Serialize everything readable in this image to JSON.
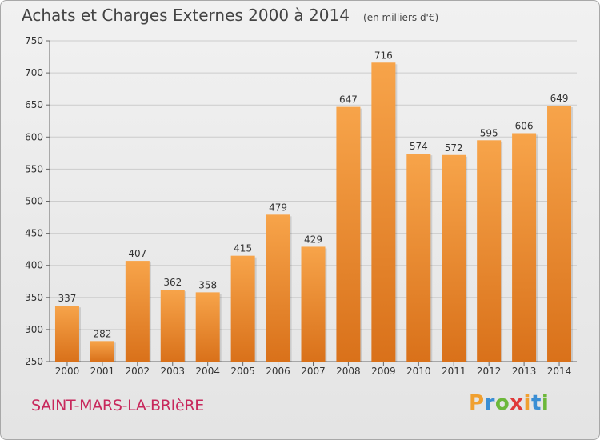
{
  "title": "Achats et Charges Externes 2000 à 2014",
  "subtitle": "(en milliers d'€)",
  "city": "SAINT-MARS-LA-BRIèRE",
  "logo": {
    "text": "Proxiti",
    "letter_colors": [
      "#f0a030",
      "#3a8ed4",
      "#6cb83a",
      "#e03a3a",
      "#f0a030",
      "#3a8ed4",
      "#6cb83a"
    ]
  },
  "colors": {
    "bar_top": "#f7a44a",
    "bar_bottom": "#d9711a",
    "grid": "#cccccc",
    "axis_text": "#333333"
  },
  "chart_data": {
    "type": "bar",
    "title": "Achats et Charges Externes 2000 à 2014",
    "subtitle": "(en milliers d'€)",
    "categories": [
      "2000",
      "2001",
      "2002",
      "2003",
      "2004",
      "2005",
      "2006",
      "2007",
      "2008",
      "2009",
      "2010",
      "2011",
      "2012",
      "2013",
      "2014"
    ],
    "values": [
      337,
      282,
      407,
      362,
      358,
      415,
      479,
      429,
      647,
      716,
      574,
      572,
      595,
      606,
      649
    ],
    "ylim": [
      250,
      750
    ],
    "yticks": [
      250,
      300,
      350,
      400,
      450,
      500,
      550,
      600,
      650,
      700,
      750
    ],
    "grid": true
  }
}
